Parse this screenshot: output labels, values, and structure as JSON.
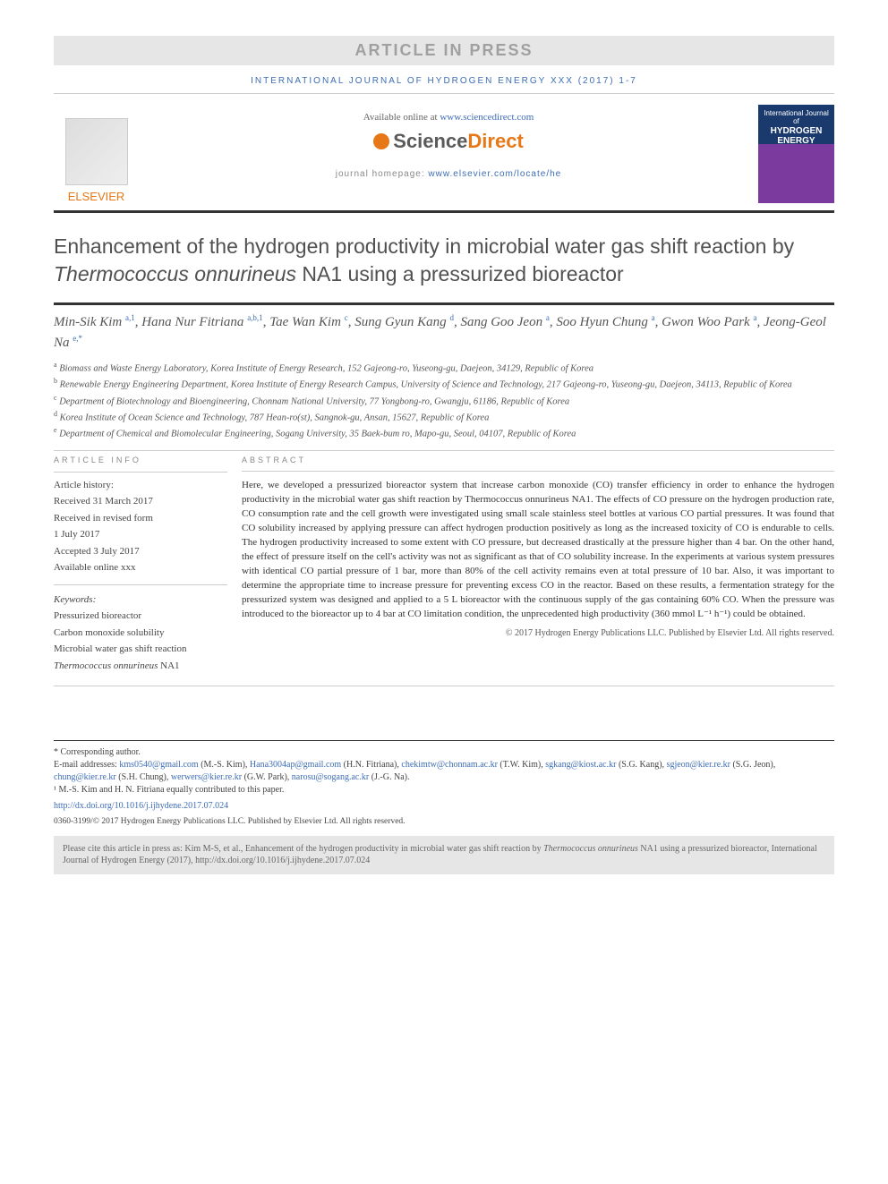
{
  "banner": "ARTICLE IN PRESS",
  "journal_header": "INTERNATIONAL JOURNAL OF HYDROGEN ENERGY XXX (2017) 1-7",
  "elsevier": "ELSEVIER",
  "available_prefix": "Available online at ",
  "available_link": "www.sciencedirect.com",
  "sd_science": "Science",
  "sd_direct": "Direct",
  "homepage_prefix": "journal homepage: ",
  "homepage_link": "www.elsevier.com/locate/he",
  "cover_line1": "International Journal of",
  "cover_line2": "HYDROGEN",
  "cover_line3": "ENERGY",
  "title_part1": "Enhancement of the hydrogen productivity in microbial water gas shift reaction by ",
  "title_italic": "Thermococcus onnurineus",
  "title_part2": " NA1 using a pressurized bioreactor",
  "authors": [
    {
      "name": "Min-Sik Kim",
      "sup": "a,1"
    },
    {
      "name": "Hana Nur Fitriana",
      "sup": "a,b,1"
    },
    {
      "name": "Tae Wan Kim",
      "sup": "c"
    },
    {
      "name": "Sung Gyun Kang",
      "sup": "d"
    },
    {
      "name": "Sang Goo Jeon",
      "sup": "a"
    },
    {
      "name": "Soo Hyun Chung",
      "sup": "a"
    },
    {
      "name": "Gwon Woo Park",
      "sup": "a"
    },
    {
      "name": "Jeong-Geol Na",
      "sup": "e,*"
    }
  ],
  "affiliations": [
    {
      "sup": "a",
      "text": "Biomass and Waste Energy Laboratory, Korea Institute of Energy Research, 152 Gajeong-ro, Yuseong-gu, Daejeon, 34129, Republic of Korea"
    },
    {
      "sup": "b",
      "text": "Renewable Energy Engineering Department, Korea Institute of Energy Research Campus, University of Science and Technology, 217 Gajeong-ro, Yuseong-gu, Daejeon, 34113, Republic of Korea"
    },
    {
      "sup": "c",
      "text": "Department of Biotechnology and Bioengineering, Chonnam National University, 77 Yongbong-ro, Gwangju, 61186, Republic of Korea"
    },
    {
      "sup": "d",
      "text": "Korea Institute of Ocean Science and Technology, 787 Hean-ro(st), Sangnok-gu, Ansan, 15627, Republic of Korea"
    },
    {
      "sup": "e",
      "text": "Department of Chemical and Biomolecular Engineering, Sogang University, 35 Baek-bum ro, Mapo-gu, Seoul, 04107, Republic of Korea"
    }
  ],
  "artinfo_heading": "ARTICLE INFO",
  "history_label": "Article history:",
  "history": [
    "Received 31 March 2017",
    "Received in revised form",
    "1 July 2017",
    "Accepted 3 July 2017",
    "Available online xxx"
  ],
  "keywords_label": "Keywords:",
  "keywords": [
    "Pressurized bioreactor",
    "Carbon monoxide solubility",
    "Microbial water gas shift reaction",
    "Thermococcus onnurineus NA1"
  ],
  "abstract_heading": "ABSTRACT",
  "abstract_text": "Here, we developed a pressurized bioreactor system that increase carbon monoxide (CO) transfer efficiency in order to enhance the hydrogen productivity in the microbial water gas shift reaction by Thermococcus onnurineus NA1. The effects of CO pressure on the hydrogen production rate, CO consumption rate and the cell growth were investigated using small scale stainless steel bottles at various CO partial pressures. It was found that CO solubility increased by applying pressure can affect hydrogen production positively as long as the increased toxicity of CO is endurable to cells. The hydrogen productivity increased to some extent with CO pressure, but decreased drastically at the pressure higher than 4 bar. On the other hand, the effect of pressure itself on the cell's activity was not as significant as that of CO solubility increase. In the experiments at various system pressures with identical CO partial pressure of 1 bar, more than 80% of the cell activity remains even at total pressure of 10 bar. Also, it was important to determine the appropriate time to increase pressure for preventing excess CO in the reactor. Based on these results, a fermentation strategy for the pressurized system was designed and applied to a 5 L bioreactor with the continuous supply of the gas containing 60% CO. When the pressure was introduced to the bioreactor up to 4 bar at CO limitation condition, the unprecedented high productivity (360 mmol L⁻¹ h⁻¹) could be obtained.",
  "abstract_copyright": "© 2017 Hydrogen Energy Publications LLC. Published by Elsevier Ltd. All rights reserved.",
  "corr_label": "* Corresponding author.",
  "email_label": "E-mail addresses: ",
  "emails": [
    {
      "addr": "kms0540@gmail.com",
      "who": "(M.-S. Kim)"
    },
    {
      "addr": "Hana3004ap@gmail.com",
      "who": "(H.N. Fitriana)"
    },
    {
      "addr": "chekimtw@chonnam.ac.kr",
      "who": "(T.W. Kim)"
    },
    {
      "addr": "sgkang@kiost.ac.kr",
      "who": "(S.G. Kang)"
    },
    {
      "addr": "sgjeon@kier.re.kr",
      "who": "(S.G. Jeon)"
    },
    {
      "addr": "chung@kier.re.kr",
      "who": "(S.H. Chung)"
    },
    {
      "addr": "werwers@kier.re.kr",
      "who": "(G.W. Park)"
    },
    {
      "addr": "narosu@sogang.ac.kr",
      "who": "(J.-G. Na)"
    }
  ],
  "contrib_note": "¹ M.-S. Kim and H. N. Fitriana equally contributed to this paper.",
  "doi": "http://dx.doi.org/10.1016/j.ijhydene.2017.07.024",
  "isbn": "0360-3199/© 2017 Hydrogen Energy Publications LLC. Published by Elsevier Ltd. All rights reserved.",
  "cite_prefix": "Please cite this article in press as: Kim M-S, et al., Enhancement of the hydrogen productivity in microbial water gas shift reaction by ",
  "cite_italic": "Thermococcus onnurineus",
  "cite_suffix": " NA1 using a pressurized bioreactor, International Journal of Hydrogen Energy (2017), http://dx.doi.org/10.1016/j.ijhydene.2017.07.024"
}
